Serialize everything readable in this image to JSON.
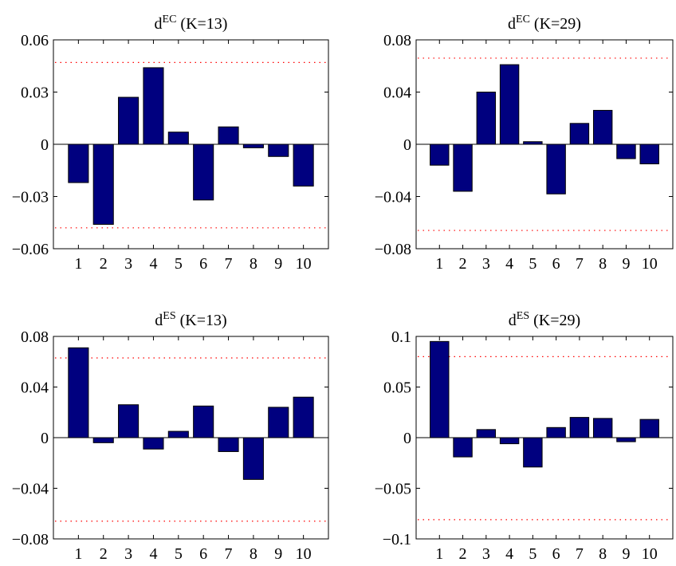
{
  "chart_data": [
    {
      "type": "bar",
      "title": {
        "main": "d",
        "sup": "EC",
        "suffix": " (K=13)"
      },
      "categories": [
        "1",
        "2",
        "3",
        "4",
        "5",
        "6",
        "7",
        "8",
        "9",
        "10"
      ],
      "values": [
        -0.022,
        -0.046,
        0.027,
        0.044,
        0.007,
        -0.032,
        0.01,
        -0.002,
        -0.007,
        -0.024
      ],
      "ylim": [
        -0.06,
        0.06
      ],
      "yticks": [
        -0.06,
        -0.03,
        0,
        0.03,
        0.06
      ],
      "ytick_labels": [
        "−0.06",
        "−0.03",
        "0",
        "0.03",
        "0.06"
      ],
      "bounds": [
        0.047,
        -0.048
      ],
      "bar_color": "#00007f",
      "bound_color": "#ff0000"
    },
    {
      "type": "bar",
      "title": {
        "main": "d",
        "sup": "EC",
        "suffix": " (K=29)"
      },
      "categories": [
        "1",
        "2",
        "3",
        "4",
        "5",
        "6",
        "7",
        "8",
        "9",
        "10"
      ],
      "values": [
        -0.016,
        -0.036,
        0.04,
        0.061,
        0.002,
        -0.038,
        0.016,
        0.026,
        -0.011,
        -0.015
      ],
      "ylim": [
        -0.08,
        0.08
      ],
      "yticks": [
        -0.08,
        -0.04,
        0,
        0.04,
        0.08
      ],
      "ytick_labels": [
        "−0.08",
        "−0.04",
        "0",
        "0.04",
        "0.08"
      ],
      "bounds": [
        0.066,
        -0.066
      ],
      "bar_color": "#00007f",
      "bound_color": "#ff0000"
    },
    {
      "type": "bar",
      "title": {
        "main": "d",
        "sup": "ES",
        "suffix": " (K=13)"
      },
      "categories": [
        "1",
        "2",
        "3",
        "4",
        "5",
        "6",
        "7",
        "8",
        "9",
        "10"
      ],
      "values": [
        0.071,
        -0.004,
        0.026,
        -0.009,
        0.005,
        0.025,
        -0.011,
        -0.033,
        0.024,
        0.032
      ],
      "ylim": [
        -0.08,
        0.08
      ],
      "yticks": [
        -0.08,
        -0.04,
        0,
        0.04,
        0.08
      ],
      "ytick_labels": [
        "−0.08",
        "−0.04",
        "0",
        "0.04",
        "0.08"
      ],
      "bounds": [
        0.063,
        -0.066
      ],
      "bar_color": "#00007f",
      "bound_color": "#ff0000"
    },
    {
      "type": "bar",
      "title": {
        "main": "d",
        "sup": "ES",
        "suffix": " (K=29)"
      },
      "categories": [
        "1",
        "2",
        "3",
        "4",
        "5",
        "6",
        "7",
        "8",
        "9",
        "10"
      ],
      "values": [
        0.095,
        -0.019,
        0.008,
        -0.006,
        -0.029,
        0.01,
        0.02,
        0.019,
        -0.004,
        0.018
      ],
      "ylim": [
        -0.1,
        0.1
      ],
      "yticks": [
        -0.1,
        -0.05,
        0,
        0.05,
        0.1
      ],
      "ytick_labels": [
        "−0.1",
        "−0.05",
        "0",
        "0.05",
        "0.1"
      ],
      "bounds": [
        0.08,
        -0.081
      ],
      "bar_color": "#00007f",
      "bound_color": "#ff0000"
    }
  ]
}
